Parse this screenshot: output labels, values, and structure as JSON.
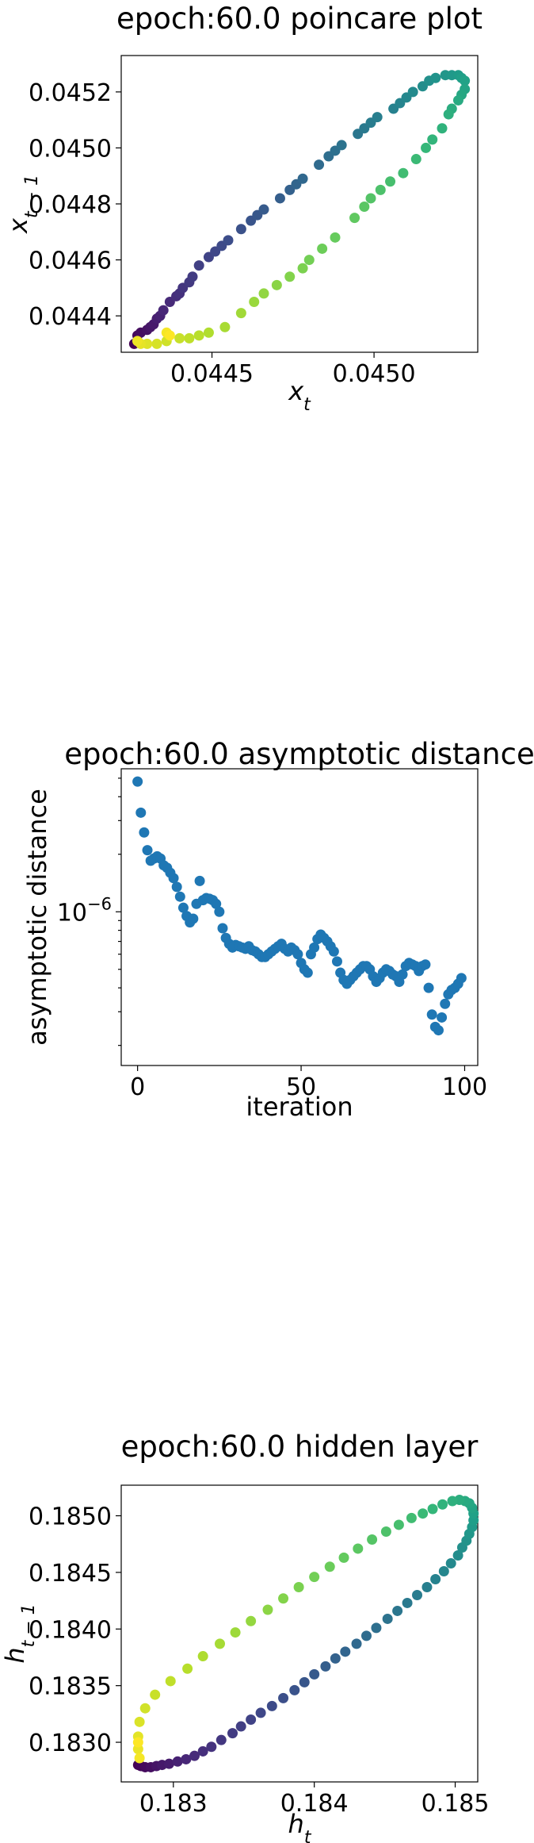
{
  "chart_data": [
    {
      "type": "scatter",
      "title": "epoch:60.0 poincare plot",
      "xlabel": "x_t",
      "ylabel": "x_{t-1}",
      "xlim": [
        0.04422,
        0.04532
      ],
      "ylim": [
        0.04427,
        0.04533
      ],
      "xticks": [
        {
          "v": 0.0445,
          "label": "0.0445"
        },
        {
          "v": 0.045,
          "label": "0.0450"
        }
      ],
      "yticks": [
        {
          "v": 0.0444,
          "label": "0.0444"
        },
        {
          "v": 0.0446,
          "label": "0.0446"
        },
        {
          "v": 0.0448,
          "label": "0.0448"
        },
        {
          "v": 0.045,
          "label": "0.0450"
        },
        {
          "v": 0.0452,
          "label": "0.0452"
        }
      ],
      "color_map": "viridis",
      "colored_by": "iteration order",
      "points": [
        [
          0.04426,
          0.0443
        ],
        [
          0.04427,
          0.04431
        ],
        [
          0.04427,
          0.04433
        ],
        [
          0.04428,
          0.04434
        ],
        [
          0.0443,
          0.04435
        ],
        [
          0.04431,
          0.04436
        ],
        [
          0.04432,
          0.04437
        ],
        [
          0.04433,
          0.04439
        ],
        [
          0.04434,
          0.0444
        ],
        [
          0.04435,
          0.04442
        ],
        [
          0.04437,
          0.04445
        ],
        [
          0.04439,
          0.04447
        ],
        [
          0.0444,
          0.04448
        ],
        [
          0.04441,
          0.0445
        ],
        [
          0.04443,
          0.04452
        ],
        [
          0.04444,
          0.04454
        ],
        [
          0.04446,
          0.04458
        ],
        [
          0.04449,
          0.04461
        ],
        [
          0.04451,
          0.04463
        ],
        [
          0.04453,
          0.04465
        ],
        [
          0.04455,
          0.04467
        ],
        [
          0.04459,
          0.04471
        ],
        [
          0.04462,
          0.04474
        ],
        [
          0.04464,
          0.04476
        ],
        [
          0.04466,
          0.04478
        ],
        [
          0.04471,
          0.04482
        ],
        [
          0.04474,
          0.04485
        ],
        [
          0.04476,
          0.04487
        ],
        [
          0.04478,
          0.04489
        ],
        [
          0.04483,
          0.04494
        ],
        [
          0.04486,
          0.04497
        ],
        [
          0.04488,
          0.04499
        ],
        [
          0.0449,
          0.04501
        ],
        [
          0.04495,
          0.04505
        ],
        [
          0.04497,
          0.04507
        ],
        [
          0.04499,
          0.04509
        ],
        [
          0.04501,
          0.04511
        ],
        [
          0.04506,
          0.04514
        ],
        [
          0.04508,
          0.04516
        ],
        [
          0.0451,
          0.04518
        ],
        [
          0.04512,
          0.0452
        ],
        [
          0.04515,
          0.04522
        ],
        [
          0.04517,
          0.04524
        ],
        [
          0.04519,
          0.04525
        ],
        [
          0.04522,
          0.04526
        ],
        [
          0.04524,
          0.04526
        ],
        [
          0.04526,
          0.04526
        ],
        [
          0.04527,
          0.04525
        ],
        [
          0.04528,
          0.04524
        ],
        [
          0.04528,
          0.04521
        ],
        [
          0.04527,
          0.04519
        ],
        [
          0.04526,
          0.04517
        ],
        [
          0.04524,
          0.04514
        ],
        [
          0.04523,
          0.04512
        ],
        [
          0.04521,
          0.04507
        ],
        [
          0.04518,
          0.04503
        ],
        [
          0.04516,
          0.045
        ],
        [
          0.04513,
          0.04496
        ],
        [
          0.04509,
          0.04491
        ],
        [
          0.04505,
          0.04488
        ],
        [
          0.04502,
          0.04485
        ],
        [
          0.04499,
          0.04482
        ],
        [
          0.04497,
          0.04479
        ],
        [
          0.04494,
          0.04475
        ],
        [
          0.04488,
          0.04468
        ],
        [
          0.04484,
          0.04464
        ],
        [
          0.0448,
          0.0446
        ],
        [
          0.04478,
          0.04457
        ],
        [
          0.04474,
          0.04454
        ],
        [
          0.0447,
          0.04451
        ],
        [
          0.04466,
          0.04448
        ],
        [
          0.04463,
          0.04445
        ],
        [
          0.04459,
          0.04441
        ],
        [
          0.04454,
          0.04436
        ],
        [
          0.04449,
          0.04434
        ],
        [
          0.04446,
          0.04433
        ],
        [
          0.04443,
          0.04432
        ],
        [
          0.0444,
          0.04432
        ],
        [
          0.04436,
          0.04431
        ],
        [
          0.04433,
          0.0443
        ],
        [
          0.0443,
          0.0443
        ],
        [
          0.04428,
          0.0443
        ],
        [
          0.04427,
          0.04431
        ],
        [
          0.04436,
          0.04434
        ],
        [
          0.04437,
          0.04433
        ]
      ]
    },
    {
      "type": "scatter",
      "title": "epoch:60.0 asymptotic distance",
      "xlabel": "iteration",
      "ylabel": "asymptotic distance",
      "y_scale": "log",
      "xlim": [
        -5,
        104
      ],
      "ylim": [
        1.57e-07,
        5.6e-06
      ],
      "xticks": [
        {
          "v": 0,
          "label": "0"
        },
        {
          "v": 50,
          "label": "50"
        },
        {
          "v": 100,
          "label": "100"
        }
      ],
      "yticks": [
        {
          "v": 1e-06,
          "base": "10",
          "exp": "−6"
        }
      ],
      "color": "#1f77b4",
      "points": [
        [
          0,
          4.8e-06
        ],
        [
          1,
          3.3e-06
        ],
        [
          2,
          2.6e-06
        ],
        [
          3,
          2.1e-06
        ],
        [
          4,
          1.85e-06
        ],
        [
          5,
          1.9e-06
        ],
        [
          6,
          1.95e-06
        ],
        [
          7,
          1.9e-06
        ],
        [
          8,
          1.75e-06
        ],
        [
          9,
          1.7e-06
        ],
        [
          10,
          1.6e-06
        ],
        [
          11,
          1.5e-06
        ],
        [
          12,
          1.35e-06
        ],
        [
          13,
          1.2e-06
        ],
        [
          14,
          1.05e-06
        ],
        [
          15,
          9.5e-07
        ],
        [
          16,
          8.8e-07
        ],
        [
          17,
          9.2e-07
        ],
        [
          18,
          1.1e-06
        ],
        [
          19,
          1.45e-06
        ],
        [
          20,
          1.15e-06
        ],
        [
          21,
          1.18e-06
        ],
        [
          22,
          1.17e-06
        ],
        [
          23,
          1.15e-06
        ],
        [
          24,
          1.1e-06
        ],
        [
          25,
          1e-06
        ],
        [
          26,
          8.2e-07
        ],
        [
          27,
          7.3e-07
        ],
        [
          28,
          6.8e-07
        ],
        [
          29,
          6.5e-07
        ],
        [
          30,
          6.7e-07
        ],
        [
          31,
          6.6e-07
        ],
        [
          32,
          6.5e-07
        ],
        [
          33,
          6.4e-07
        ],
        [
          34,
          6.6e-07
        ],
        [
          35,
          6.3e-07
        ],
        [
          36,
          6.2e-07
        ],
        [
          37,
          6e-07
        ],
        [
          38,
          5.8e-07
        ],
        [
          39,
          5.8e-07
        ],
        [
          40,
          6e-07
        ],
        [
          41,
          6.2e-07
        ],
        [
          42,
          6.4e-07
        ],
        [
          43,
          6.6e-07
        ],
        [
          44,
          6.8e-07
        ],
        [
          45,
          6.4e-07
        ],
        [
          46,
          6.2e-07
        ],
        [
          47,
          6.5e-07
        ],
        [
          48,
          6.3e-07
        ],
        [
          49,
          6e-07
        ],
        [
          50,
          5.4e-07
        ],
        [
          51,
          5e-07
        ],
        [
          52,
          4.8e-07
        ],
        [
          53,
          6e-07
        ],
        [
          54,
          6.5e-07
        ],
        [
          55,
          7.2e-07
        ],
        [
          56,
          7.6e-07
        ],
        [
          57,
          7.3e-07
        ],
        [
          58,
          7e-07
        ],
        [
          59,
          6.6e-07
        ],
        [
          60,
          6.2e-07
        ],
        [
          61,
          5.5e-07
        ],
        [
          62,
          4.8e-07
        ],
        [
          63,
          4.4e-07
        ],
        [
          64,
          4.2e-07
        ],
        [
          65,
          4.4e-07
        ],
        [
          66,
          4.6e-07
        ],
        [
          67,
          4.8e-07
        ],
        [
          68,
          5e-07
        ],
        [
          69,
          5.2e-07
        ],
        [
          70,
          5.2e-07
        ],
        [
          71,
          5e-07
        ],
        [
          72,
          4.6e-07
        ],
        [
          73,
          4.3e-07
        ],
        [
          74,
          4.5e-07
        ],
        [
          75,
          4.8e-07
        ],
        [
          76,
          5e-07
        ],
        [
          77,
          4.9e-07
        ],
        [
          78,
          4.7e-07
        ],
        [
          79,
          4.6e-07
        ],
        [
          80,
          4.3e-07
        ],
        [
          81,
          4.7e-07
        ],
        [
          82,
          5.2e-07
        ],
        [
          83,
          5.4e-07
        ],
        [
          84,
          5.3e-07
        ],
        [
          85,
          5.2e-07
        ],
        [
          86,
          4.9e-07
        ],
        [
          87,
          5.2e-07
        ],
        [
          88,
          5.3e-07
        ],
        [
          89,
          4e-07
        ],
        [
          90,
          2.9e-07
        ],
        [
          91,
          2.5e-07
        ],
        [
          92,
          2.4e-07
        ],
        [
          93,
          2.8e-07
        ],
        [
          94,
          3.3e-07
        ],
        [
          95,
          3.7e-07
        ],
        [
          96,
          3.9e-07
        ],
        [
          97,
          4e-07
        ],
        [
          98,
          4.2e-07
        ],
        [
          99,
          4.5e-07
        ]
      ]
    },
    {
      "type": "scatter",
      "title": "epoch:60.0 hidden layer",
      "xlabel": "h_t",
      "ylabel": "h_{t-1}",
      "xlim": [
        0.18263,
        0.18516
      ],
      "ylim": [
        0.18265,
        0.18527
      ],
      "xticks": [
        {
          "v": 0.183,
          "label": "0.183"
        },
        {
          "v": 0.184,
          "label": "0.184"
        },
        {
          "v": 0.185,
          "label": "0.185"
        }
      ],
      "yticks": [
        {
          "v": 0.183,
          "label": "0.1830"
        },
        {
          "v": 0.1835,
          "label": "0.1835"
        },
        {
          "v": 0.184,
          "label": "0.1840"
        },
        {
          "v": 0.1845,
          "label": "0.1845"
        },
        {
          "v": 0.185,
          "label": "0.1850"
        }
      ],
      "color_map": "viridis",
      "colored_by": "iteration order",
      "points": [
        [
          0.18275,
          0.1828
        ],
        [
          0.18277,
          0.18279
        ],
        [
          0.1828,
          0.18278
        ],
        [
          0.18284,
          0.18278
        ],
        [
          0.18288,
          0.18279
        ],
        [
          0.18292,
          0.1828
        ],
        [
          0.18297,
          0.18281
        ],
        [
          0.18303,
          0.18283
        ],
        [
          0.18309,
          0.18285
        ],
        [
          0.18315,
          0.18288
        ],
        [
          0.18321,
          0.18292
        ],
        [
          0.18327,
          0.18296
        ],
        [
          0.18334,
          0.18302
        ],
        [
          0.18342,
          0.18308
        ],
        [
          0.18348,
          0.18314
        ],
        [
          0.18355,
          0.1832
        ],
        [
          0.18362,
          0.18326
        ],
        [
          0.1837,
          0.18332
        ],
        [
          0.18378,
          0.18339
        ],
        [
          0.18386,
          0.18346
        ],
        [
          0.18393,
          0.18353
        ],
        [
          0.184,
          0.1836
        ],
        [
          0.18408,
          0.18367
        ],
        [
          0.18415,
          0.18374
        ],
        [
          0.18422,
          0.1838
        ],
        [
          0.1843,
          0.18387
        ],
        [
          0.18437,
          0.18394
        ],
        [
          0.18444,
          0.18401
        ],
        [
          0.18452,
          0.18409
        ],
        [
          0.18459,
          0.18416
        ],
        [
          0.18466,
          0.18423
        ],
        [
          0.18473,
          0.1843
        ],
        [
          0.1848,
          0.18437
        ],
        [
          0.18486,
          0.18444
        ],
        [
          0.18492,
          0.18451
        ],
        [
          0.18497,
          0.18458
        ],
        [
          0.18502,
          0.18465
        ],
        [
          0.18505,
          0.18472
        ],
        [
          0.18508,
          0.18478
        ],
        [
          0.1851,
          0.18484
        ],
        [
          0.18512,
          0.1849
        ],
        [
          0.18513,
          0.18496
        ],
        [
          0.18513,
          0.18502
        ],
        [
          0.18512,
          0.18507
        ],
        [
          0.1851,
          0.18511
        ],
        [
          0.18507,
          0.18513
        ],
        [
          0.18503,
          0.18514
        ],
        [
          0.18498,
          0.18513
        ],
        [
          0.18491,
          0.1851
        ],
        [
          0.18484,
          0.18506
        ],
        [
          0.18477,
          0.18502
        ],
        [
          0.18469,
          0.18498
        ],
        [
          0.1846,
          0.18492
        ],
        [
          0.18451,
          0.18486
        ],
        [
          0.18441,
          0.18479
        ],
        [
          0.18431,
          0.18471
        ],
        [
          0.18421,
          0.18463
        ],
        [
          0.18411,
          0.18455
        ],
        [
          0.184,
          0.18446
        ],
        [
          0.18389,
          0.18437
        ],
        [
          0.18378,
          0.18427
        ],
        [
          0.18367,
          0.18417
        ],
        [
          0.18355,
          0.18407
        ],
        [
          0.18344,
          0.18397
        ],
        [
          0.18333,
          0.18387
        ],
        [
          0.18321,
          0.18376
        ],
        [
          0.1831,
          0.18365
        ],
        [
          0.18298,
          0.18354
        ],
        [
          0.18287,
          0.18342
        ],
        [
          0.1828,
          0.1833
        ],
        [
          0.18276,
          0.18318
        ],
        [
          0.18275,
          0.18305
        ],
        [
          0.18275,
          0.18294
        ],
        [
          0.18276,
          0.18286
        ],
        [
          0.18275,
          0.183
        ]
      ]
    }
  ]
}
